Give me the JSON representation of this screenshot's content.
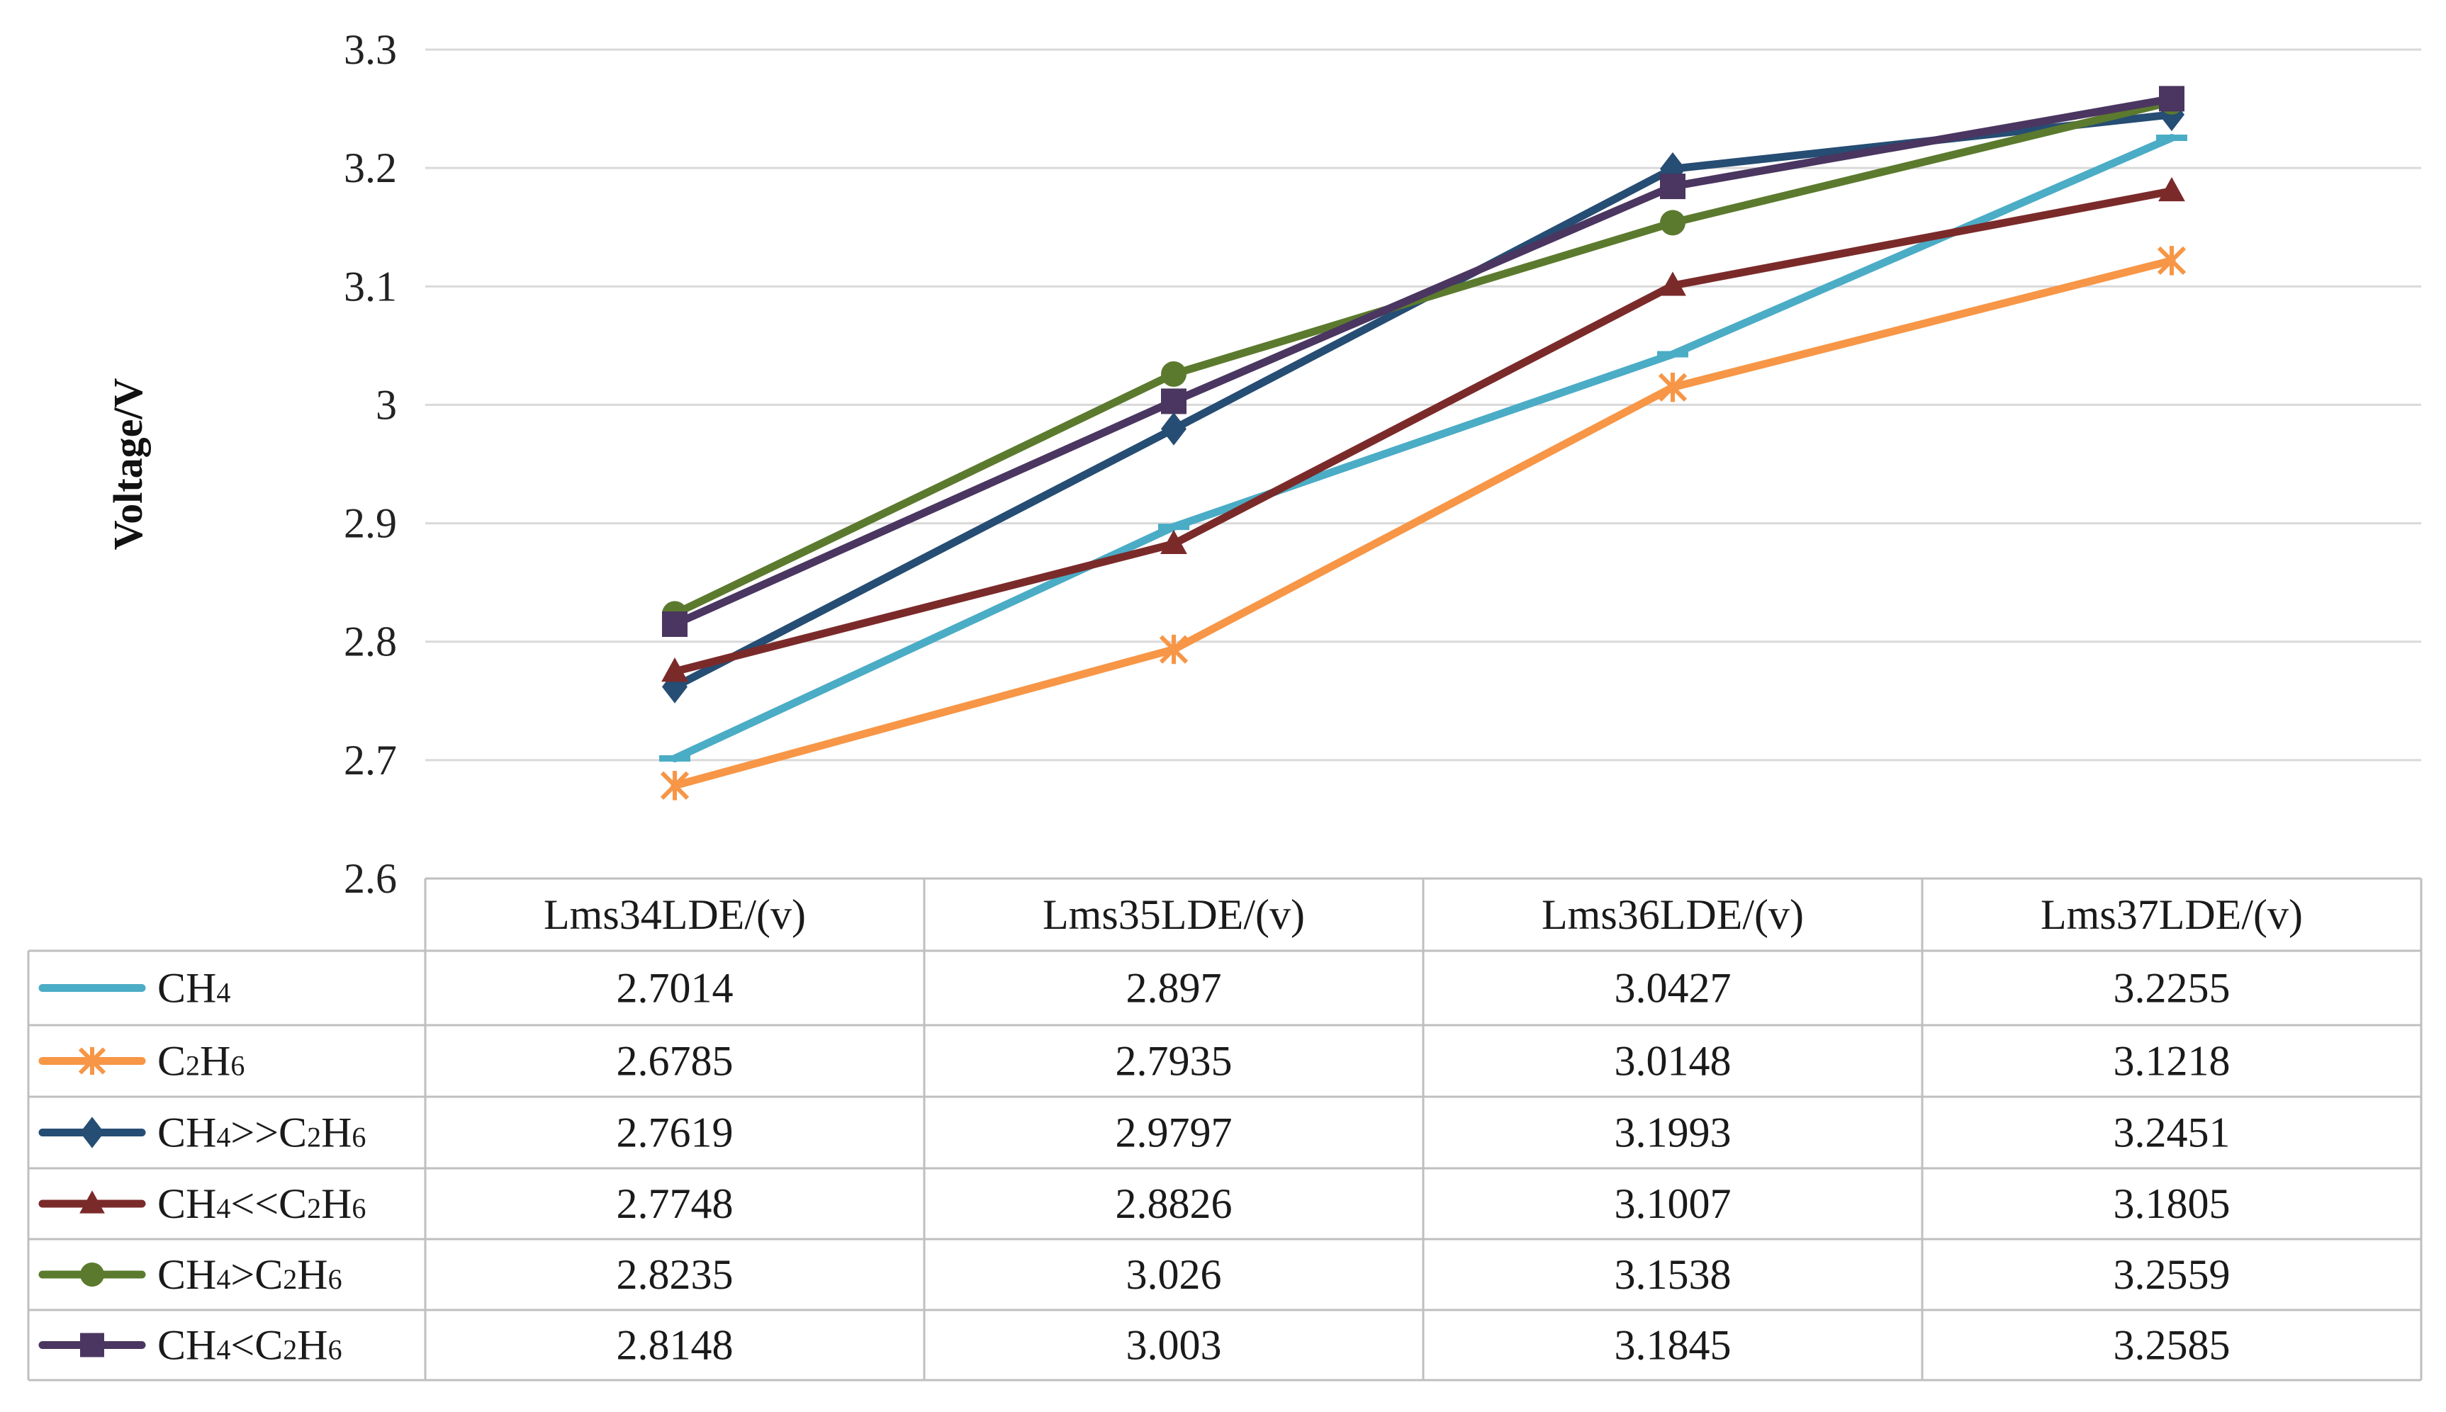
{
  "chart_data": {
    "type": "line",
    "ylabel": "Voltage/V",
    "xlabel": "",
    "ylim": [
      2.6,
      3.3
    ],
    "yticks": [
      "2.6",
      "2.7",
      "2.8",
      "2.9",
      "3",
      "3.1",
      "3.2",
      "3.3"
    ],
    "grid": true,
    "legend": "data-table",
    "categories": [
      "Lms34LDE/(v)",
      "Lms35LDE/(v)",
      "Lms36LDE/(v)",
      "Lms37LDE/(v)"
    ],
    "series": [
      {
        "name": "CH4",
        "parts": [
          [
            "CH",
            false
          ],
          [
            "4",
            true
          ]
        ],
        "color": "#4bacc6",
        "marker": "dash",
        "values": [
          2.7014,
          2.897,
          3.0427,
          3.2255
        ],
        "labels": [
          "2.7014",
          "2.897",
          "3.0427",
          "3.2255"
        ]
      },
      {
        "name": "C2H6",
        "parts": [
          [
            "C",
            false
          ],
          [
            "2",
            true
          ],
          [
            "H",
            false
          ],
          [
            "6",
            true
          ]
        ],
        "color": "#f79646",
        "marker": "star",
        "values": [
          2.6785,
          2.7935,
          3.0148,
          3.1218
        ],
        "labels": [
          "2.6785",
          "2.7935",
          "3.0148",
          "3.1218"
        ]
      },
      {
        "name": "CH4>>C2H6",
        "parts": [
          [
            "CH",
            false
          ],
          [
            "4",
            true
          ],
          [
            ">>C",
            false
          ],
          [
            "2",
            true
          ],
          [
            "H",
            false
          ],
          [
            "6",
            true
          ]
        ],
        "color": "#264d73",
        "marker": "diamond",
        "values": [
          2.7619,
          2.9797,
          3.1993,
          3.2451
        ],
        "labels": [
          "2.7619",
          "2.9797",
          "3.1993",
          "3.2451"
        ]
      },
      {
        "name": "CH4<<C2H6",
        "parts": [
          [
            "CH",
            false
          ],
          [
            "4",
            true
          ],
          [
            "<<C",
            false
          ],
          [
            "2",
            true
          ],
          [
            "H",
            false
          ],
          [
            "6",
            true
          ]
        ],
        "color": "#7b2a2a",
        "marker": "triangle",
        "values": [
          2.7748,
          2.8826,
          3.1007,
          3.1805
        ],
        "labels": [
          "2.7748",
          "2.8826",
          "3.1007",
          "3.1805"
        ]
      },
      {
        "name": "CH4>C2H6",
        "parts": [
          [
            "CH",
            false
          ],
          [
            "4",
            true
          ],
          [
            ">C",
            false
          ],
          [
            "2",
            true
          ],
          [
            "H",
            false
          ],
          [
            "6",
            true
          ]
        ],
        "color": "#5b7a2e",
        "marker": "circle",
        "values": [
          2.8235,
          3.026,
          3.1538,
          3.2559
        ],
        "labels": [
          "2.8235",
          "3.026",
          "3.1538",
          "3.2559"
        ]
      },
      {
        "name": "CH4<C2H6",
        "parts": [
          [
            "CH",
            false
          ],
          [
            "4",
            true
          ],
          [
            "<C",
            false
          ],
          [
            "2",
            true
          ],
          [
            "H",
            false
          ],
          [
            "6",
            true
          ]
        ],
        "color": "#4a3660",
        "marker": "square",
        "values": [
          2.8148,
          3.003,
          3.1845,
          3.2585
        ],
        "labels": [
          "2.8148",
          "3.003",
          "3.1845",
          "3.2585"
        ]
      }
    ]
  }
}
